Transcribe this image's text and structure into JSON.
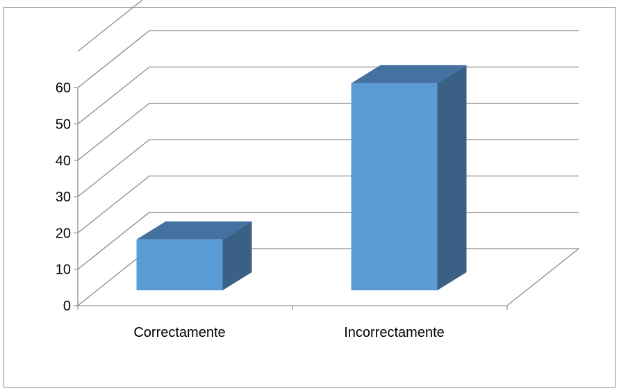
{
  "chart_data": {
    "type": "bar",
    "style": "3d-column",
    "categories": [
      "Correctamente",
      "Incorrectamente"
    ],
    "values": [
      14,
      57
    ],
    "ylim": [
      0,
      70
    ],
    "yticks": [
      0,
      10,
      20,
      30,
      40,
      50,
      60
    ],
    "grid": true,
    "legend": "none",
    "colors": {
      "bar_front": "#5b9bd5",
      "bar_top": "#4472a0",
      "bar_side": "#3a6185",
      "gridline": "#8c8c8c",
      "axis": "#8c8c8c"
    }
  }
}
